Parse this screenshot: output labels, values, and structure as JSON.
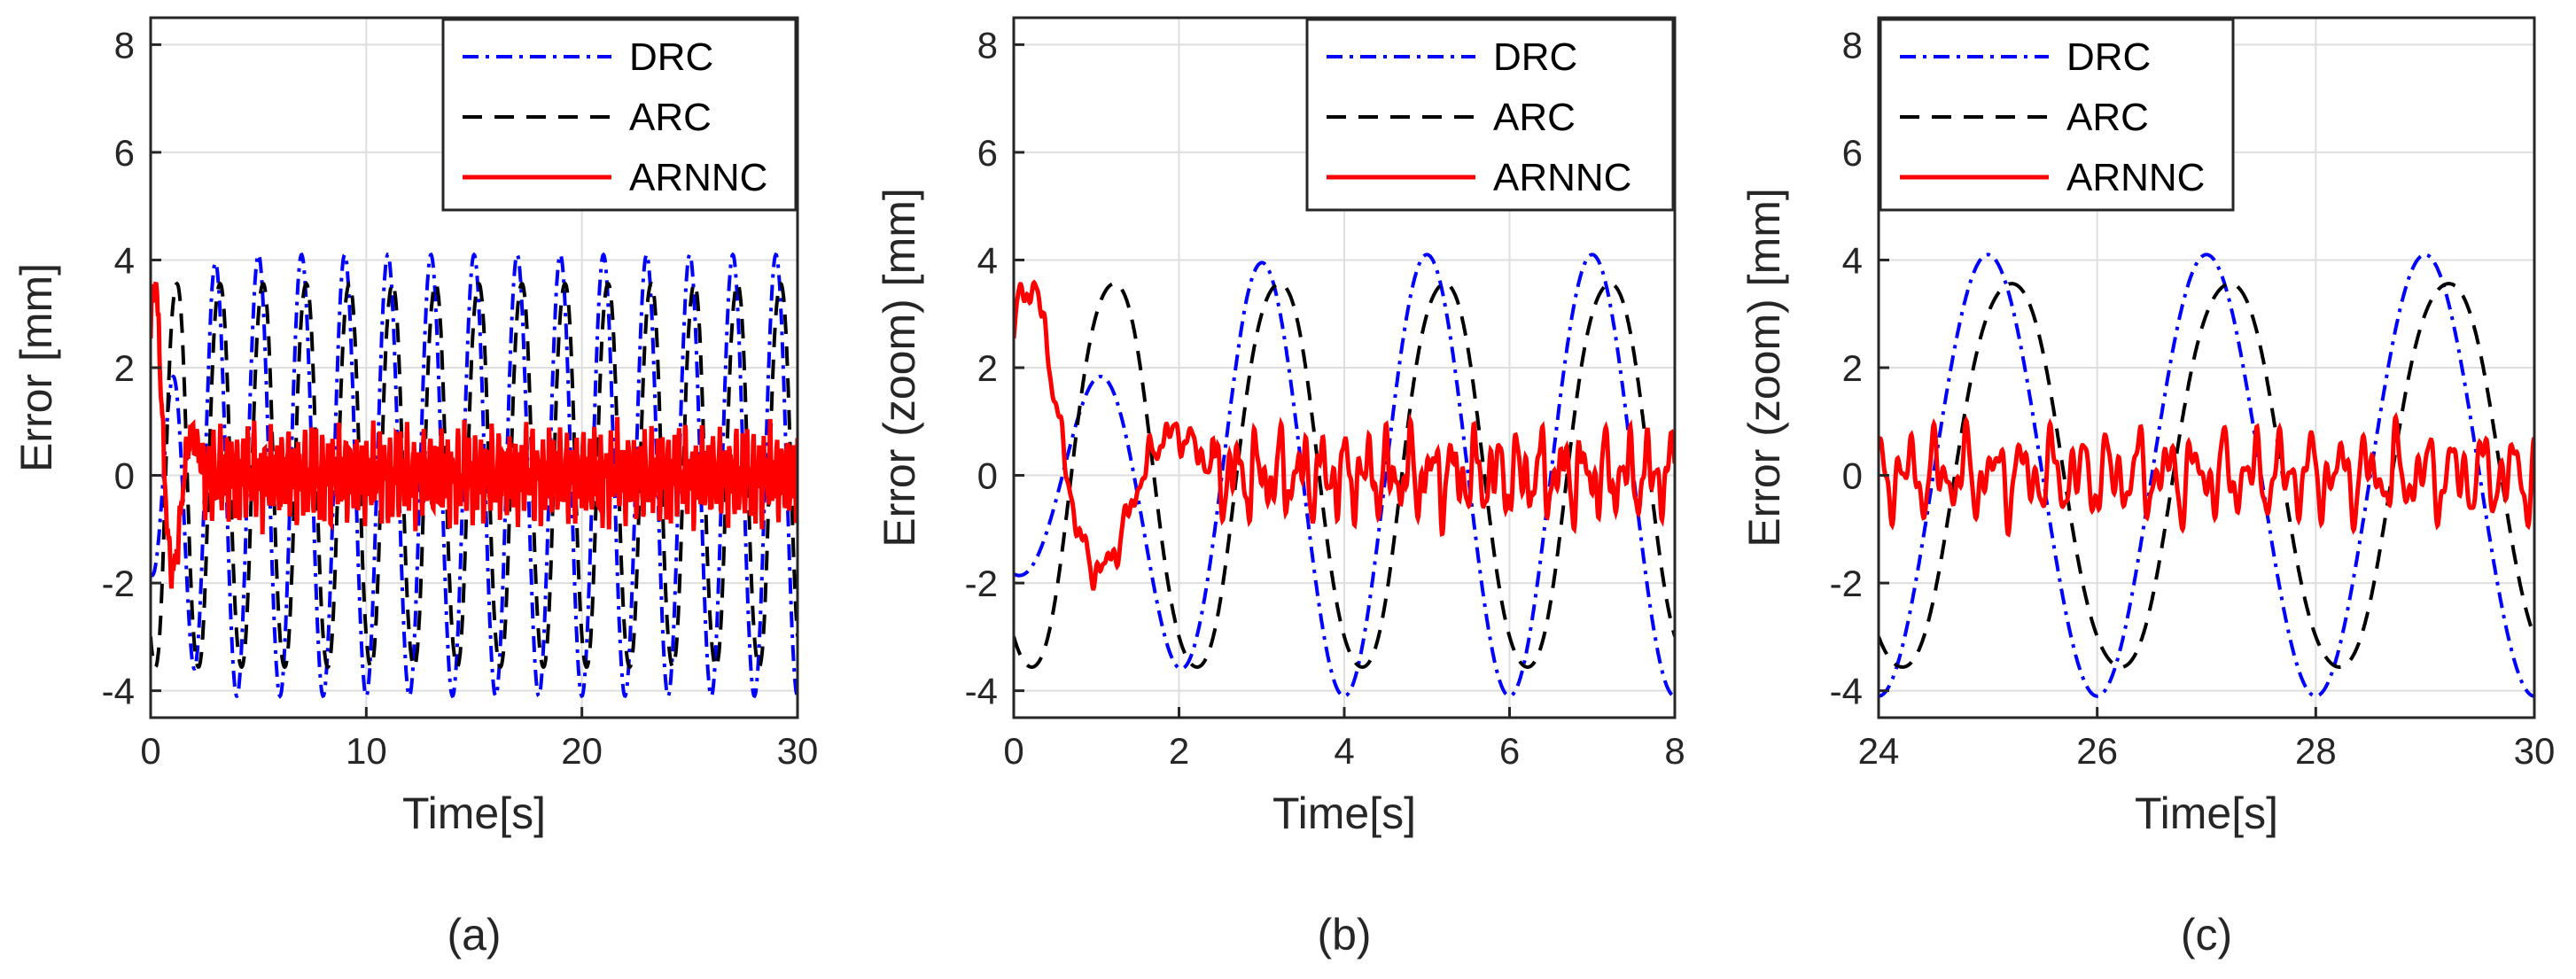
{
  "colors": {
    "DRC": "#0000ff",
    "ARC": "#000000",
    "ARNNC": "#ff0000",
    "grid": "#dedede",
    "axis": "#262626"
  },
  "chart_data": [
    {
      "type": "line",
      "panel": "(a)",
      "xlabel": "Time[s]",
      "ylabel": "Error [mm]",
      "xlim": [
        0,
        30
      ],
      "ylim": [
        -4.5,
        8.5
      ],
      "xticks": [
        "0",
        "10",
        "20",
        "30"
      ],
      "yticks": [
        "-4",
        "-2",
        "0",
        "2",
        "4",
        "6",
        "8"
      ],
      "grid": true,
      "legend_position": "top-right",
      "series": [
        {
          "name": "DRC",
          "style": "dash-dot",
          "amplitude": 4.1,
          "period": 2.0,
          "offset": 0.0,
          "description": "sinusoidal error approx. +/-4.1 mm, period 2 s"
        },
        {
          "name": "ARC",
          "style": "dashed",
          "amplitude": 3.7,
          "period": 2.0,
          "offset": 0.2,
          "description": "sinusoidal error approx. +/-3.7 mm, period 2 s"
        },
        {
          "name": "ARNNC",
          "style": "solid",
          "amplitude": 0.7,
          "period": 0.3,
          "offset": 0.1,
          "description": "initial transient up to approx. +/-4 mm within first 2 s, then noise within +/-1 mm"
        }
      ]
    },
    {
      "type": "line",
      "panel": "(b)",
      "xlabel": "Time[s]",
      "ylabel": "Error (zoom) [mm]",
      "xlim": [
        0,
        8
      ],
      "ylim": [
        -4.5,
        8.5
      ],
      "xticks": [
        "0",
        "2",
        "4",
        "6",
        "8"
      ],
      "yticks": [
        "-4",
        "-2",
        "0",
        "2",
        "4",
        "6",
        "8"
      ],
      "grid": true,
      "legend_position": "top-right",
      "series": [
        {
          "name": "DRC",
          "style": "dash-dot",
          "amplitude": 4.1,
          "period": 2.0,
          "offset": 0.0
        },
        {
          "name": "ARC",
          "style": "dashed",
          "amplitude": 3.7,
          "period": 2.0,
          "offset": 0.2
        },
        {
          "name": "ARNNC",
          "style": "solid",
          "amplitude": 0.7,
          "period": 0.3,
          "offset": 0.1
        }
      ]
    },
    {
      "type": "line",
      "panel": "(c)",
      "xlabel": "Time[s]",
      "ylabel": "Error (zoom) [mm]",
      "xlim": [
        24,
        30
      ],
      "ylim": [
        -4.5,
        8.5
      ],
      "xticks": [
        "24",
        "26",
        "28",
        "30"
      ],
      "yticks": [
        "-4",
        "-2",
        "0",
        "2",
        "4",
        "6",
        "8"
      ],
      "grid": true,
      "legend_position": "top-left",
      "series": [
        {
          "name": "DRC",
          "style": "dash-dot",
          "amplitude": 4.1,
          "period": 2.0,
          "offset": 0.0
        },
        {
          "name": "ARC",
          "style": "dashed",
          "amplitude": 3.7,
          "period": 2.0,
          "offset": 0.2
        },
        {
          "name": "ARNNC",
          "style": "solid",
          "amplitude": 0.7,
          "period": 0.3,
          "offset": 0.1
        }
      ]
    }
  ]
}
